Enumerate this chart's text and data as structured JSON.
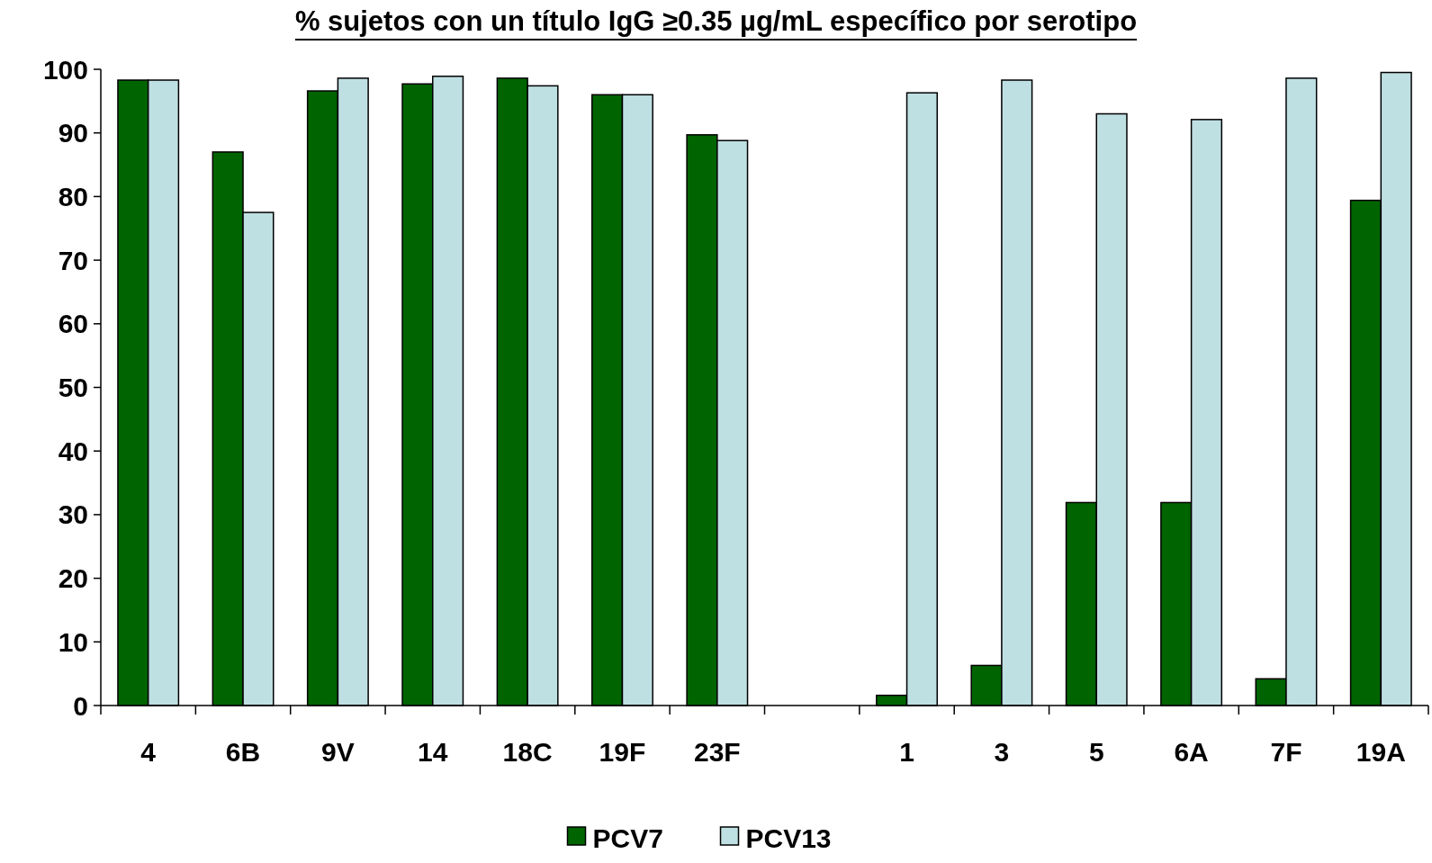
{
  "chart_data": {
    "type": "bar",
    "title": "% sujetos con un título IgG ≥0.35 µg/mL específico por serotipo",
    "categories": [
      "4",
      "6B",
      "9V",
      "14",
      "18C",
      "19F",
      "23F",
      null,
      "1",
      "3",
      "5",
      "6A",
      "7F",
      "19A"
    ],
    "series": [
      {
        "name": "PCV7",
        "color": "#006400",
        "values": [
          98.3,
          87.0,
          96.6,
          97.7,
          98.6,
          96.0,
          89.7,
          null,
          1.6,
          6.3,
          31.9,
          31.9,
          4.2,
          79.4
        ]
      },
      {
        "name": "PCV13",
        "color": "#bfe0e3",
        "values": [
          98.3,
          77.5,
          98.6,
          98.9,
          97.4,
          96.0,
          88.8,
          null,
          96.3,
          98.3,
          93.0,
          92.1,
          98.6,
          99.5
        ]
      }
    ],
    "ylim": [
      0,
      100
    ],
    "yticks": [
      0,
      10,
      20,
      30,
      40,
      50,
      60,
      70,
      80,
      90,
      100
    ],
    "grid": false,
    "legend": "bottom"
  }
}
